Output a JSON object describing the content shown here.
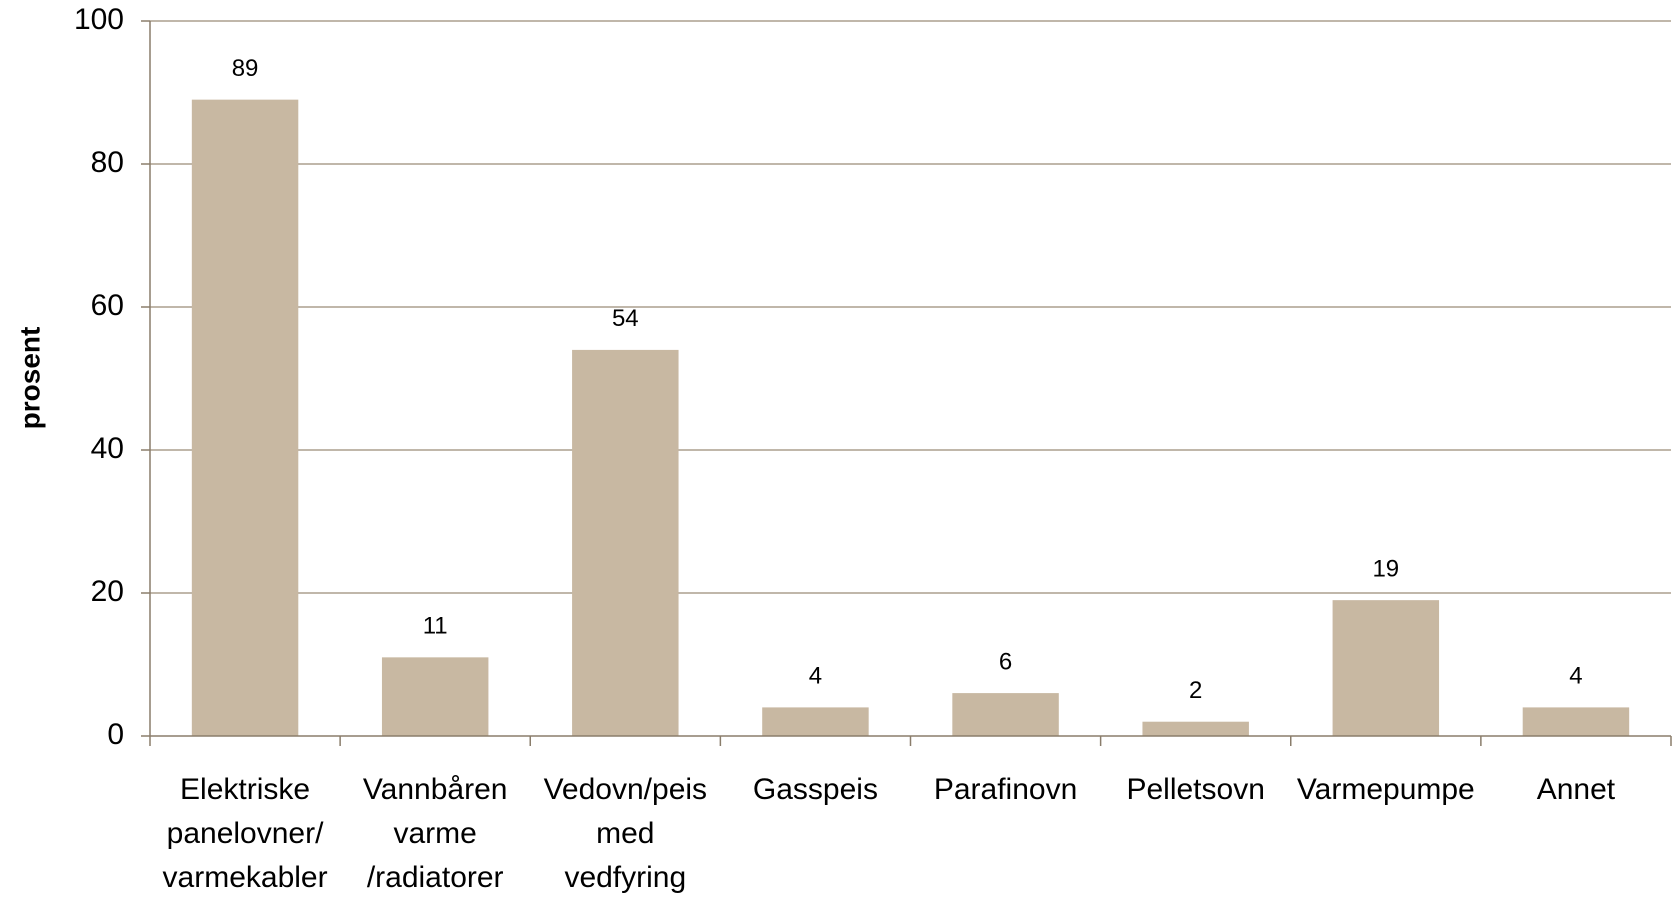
{
  "chart_data": {
    "type": "bar",
    "y_label": "prosent",
    "categories": [
      "Elektriske\npanelovner/\nvarmekabler",
      "Vannbåren\nvarme\n/radiatorer",
      "Vedovn/peis\nmed\nvedfyring",
      "Gasspeis",
      "Parafinovn",
      "Pelletsovn",
      "Varmepumpe",
      "Annet"
    ],
    "values": [
      89,
      11,
      54,
      4,
      6,
      2,
      19,
      4
    ],
    "color": "#c8b8a2",
    "ylim": [
      0,
      100
    ],
    "yticks": [
      0,
      20,
      40,
      60,
      80,
      100
    ],
    "grid": true
  }
}
